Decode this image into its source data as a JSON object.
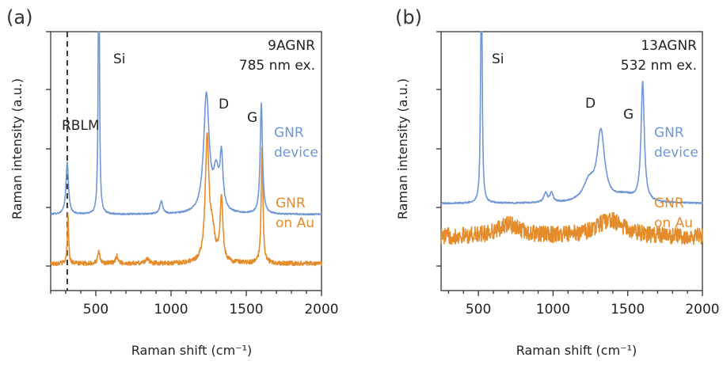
{
  "colors": {
    "device": "#6f97d6",
    "au": "#e48c2b",
    "axis": "#333333"
  },
  "chart_data": [
    {
      "panel": "(a)",
      "type": "line",
      "title_lines": [
        "9AGNR",
        "785 nm ex."
      ],
      "xlabel": "Raman shift (cm⁻¹)",
      "ylabel": "Raman intensity (a.u.)",
      "xlim": [
        200,
        2000
      ],
      "xticks": [
        500,
        1000,
        1500,
        2000
      ],
      "y_scale": "arbitrary",
      "dashed_line_x": 310,
      "annotations": [
        {
          "text": "RBLM",
          "x": 310,
          "series": "GNR device"
        },
        {
          "text": "Si",
          "x": 520,
          "series": "GNR device"
        },
        {
          "text": "D",
          "x": 1335,
          "series": "GNR device"
        },
        {
          "text": "G",
          "x": 1600,
          "series": "GNR device"
        }
      ],
      "series": [
        {
          "name": "GNR device",
          "legend_lines": [
            "GNR",
            "device"
          ],
          "color": "device",
          "offset": 0.4,
          "noise": 0.006,
          "baseline": 0.02,
          "peaks": [
            {
              "center": 310,
              "width": 10,
              "height": 0.42
            },
            {
              "center": 520,
              "width": 4.5,
              "height": 2.6
            },
            {
              "center": 935,
              "width": 12,
              "height": 0.1
            },
            {
              "center": 1235,
              "width": 22,
              "height": 0.96
            },
            {
              "center": 1300,
              "width": 22,
              "height": 0.3
            },
            {
              "center": 1335,
              "width": 12,
              "height": 0.42
            },
            {
              "center": 1600,
              "width": 9,
              "height": 0.9
            }
          ]
        },
        {
          "name": "GNR on Au",
          "legend_lines": [
            "GNR",
            "on Au"
          ],
          "color": "au",
          "offset": 0.0,
          "noise": 0.018,
          "baseline": 0.02,
          "peaks": [
            {
              "center": 315,
              "width": 5,
              "height": 0.42
            },
            {
              "center": 520,
              "width": 9,
              "height": 0.09
            },
            {
              "center": 640,
              "width": 10,
              "height": 0.06
            },
            {
              "center": 840,
              "width": 14,
              "height": 0.04
            },
            {
              "center": 1240,
              "width": 15,
              "height": 1.0
            },
            {
              "center": 1275,
              "width": 20,
              "height": 0.22
            },
            {
              "center": 1335,
              "width": 11,
              "height": 0.52
            },
            {
              "center": 1605,
              "width": 7,
              "height": 0.95
            }
          ]
        }
      ]
    },
    {
      "panel": "(b)",
      "type": "line",
      "title_lines": [
        "13AGNR",
        "532 nm ex."
      ],
      "xlabel": "Raman shift (cm⁻¹)",
      "ylabel": "Raman intensity (a.u.)",
      "xlim": [
        250,
        2000
      ],
      "xticks": [
        500,
        1000,
        1500,
        2000
      ],
      "y_scale": "arbitrary",
      "annotations": [
        {
          "text": "Si",
          "x": 520,
          "series": "GNR device"
        },
        {
          "text": "D",
          "x": 1320,
          "series": "GNR device"
        },
        {
          "text": "G",
          "x": 1600,
          "series": "GNR device"
        }
      ],
      "series": [
        {
          "name": "GNR device",
          "legend_lines": [
            "GNR",
            "device"
          ],
          "color": "device",
          "offset": 0.4,
          "noise": 0.006,
          "baseline": 0.02,
          "peaks": [
            {
              "center": 520,
              "width": 5,
              "height": 2.6
            },
            {
              "center": 950,
              "width": 14,
              "height": 0.08
            },
            {
              "center": 990,
              "width": 12,
              "height": 0.08
            },
            {
              "center": 1240,
              "width": 45,
              "height": 0.16
            },
            {
              "center": 1320,
              "width": 30,
              "height": 0.58
            },
            {
              "center": 1480,
              "width": 80,
              "height": 0.06
            },
            {
              "center": 1600,
              "width": 13,
              "height": 1.0
            }
          ]
        },
        {
          "name": "GNR on Au",
          "legend_lines": [
            "GNR",
            "on Au"
          ],
          "color": "au",
          "offset": 0.0,
          "noise": 0.07,
          "baseline": 0.14,
          "peaks": [
            {
              "center": 700,
              "width": 90,
              "height": 0.1
            },
            {
              "center": 1380,
              "width": 110,
              "height": 0.14
            }
          ]
        }
      ]
    }
  ]
}
